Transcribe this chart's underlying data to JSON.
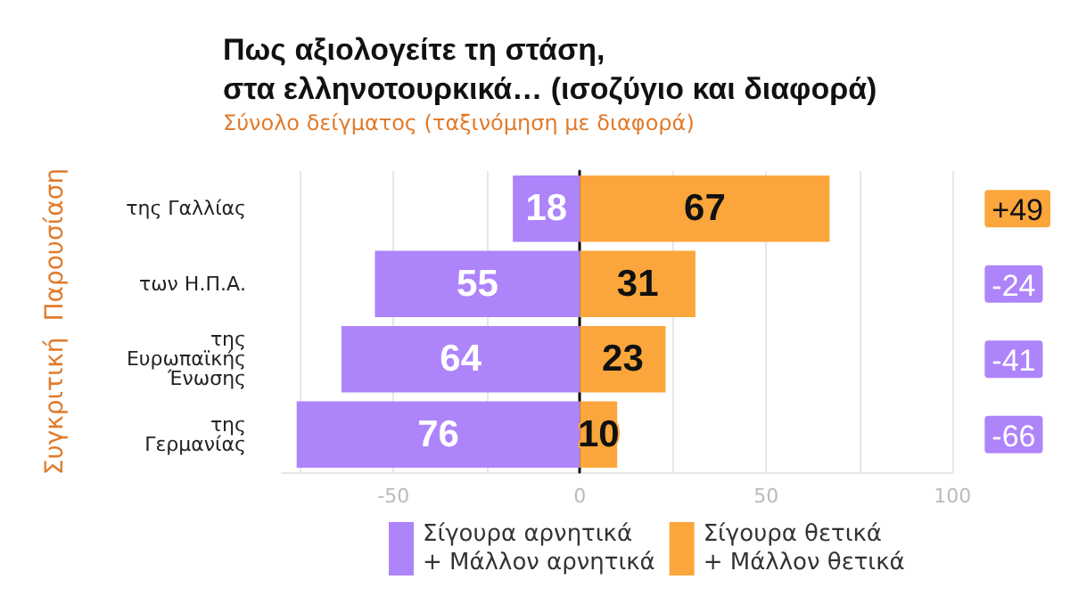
{
  "chart_data": {
    "type": "bar",
    "orientation": "horizontal",
    "title": "Πως αξιολογείτε τη στάση,\nστα ελληνοτουρκικά… (ισοζύγιο και διαφορά)",
    "subtitle": "Σύνολο δείγματος (ταξινόμηση με διαφορά)",
    "ylabel": "Συγκριτική  Παρουσίαση",
    "categories": [
      "της Γαλλίας",
      "των Η.Π.Α.",
      "της\nΕυρωπαϊκής\nΈνωσης",
      "της\nΓερμανίας"
    ],
    "series": [
      {
        "name": "Σίγουρα αρνητικά\n+ Μάλλον αρνητικά",
        "color": "#ae84fa",
        "base": [
          -18,
          -55,
          -64,
          -76
        ],
        "values": [
          18,
          55,
          64,
          76
        ],
        "value_labels": [
          "18",
          "55",
          "64",
          "76"
        ]
      },
      {
        "name": "Σίγουρα θετικά\n+ Μάλλον θετικά",
        "color": "#fba63c",
        "values": [
          67,
          31,
          23,
          10
        ],
        "value_labels": [
          "67",
          "31",
          "23",
          "10"
        ]
      }
    ],
    "annotations": [
      "+49",
      "-24",
      "-41",
      "-66"
    ],
    "xlim": [
      -80,
      100
    ],
    "xticks": [
      {
        "value": -75,
        "label": null
      },
      -50,
      {
        "value": -25,
        "label": null
      },
      0,
      {
        "value": 25,
        "label": null
      },
      50,
      {
        "value": 75,
        "label": null
      },
      100
    ],
    "grid": "x",
    "legend": "bottom"
  }
}
